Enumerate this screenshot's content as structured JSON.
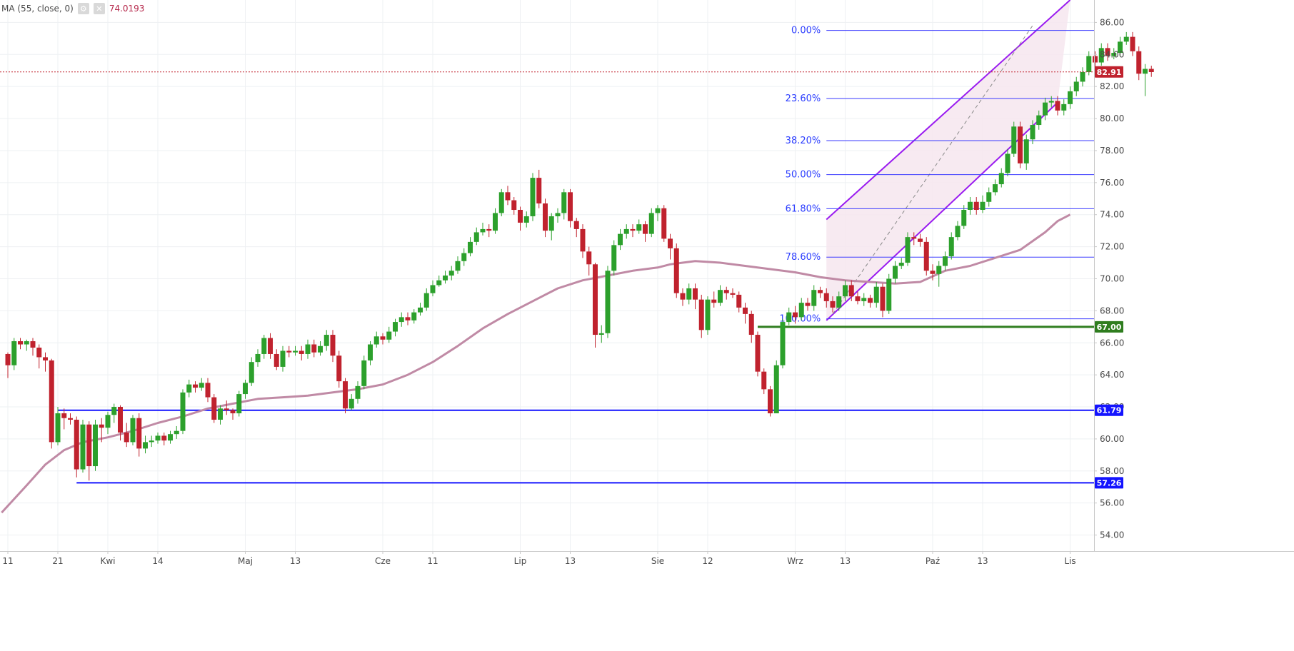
{
  "legend": {
    "study_label": "MA (55, close, 0)",
    "value": "74.0193",
    "settings_icon": "gear-icon",
    "close_icon": "close-icon"
  },
  "colors": {
    "up": "#2ca02c",
    "down": "#c0222e",
    "ma": "#c08aa5",
    "level": "#1414ff",
    "fib": "#3a3aff",
    "channel": "#9a1bf0",
    "channel_fill": "#f6e6ee",
    "support_green": "#2f7d1f",
    "price_tag": "#c0222e"
  },
  "chart_data": {
    "type": "candlestick",
    "x_axis_labels": [
      {
        "label": "11",
        "i": 0
      },
      {
        "label": "21",
        "i": 8
      },
      {
        "label": "Kwi",
        "i": 16
      },
      {
        "label": "14",
        "i": 24
      },
      {
        "label": "Maj",
        "i": 38
      },
      {
        "label": "13",
        "i": 46
      },
      {
        "label": "Cze",
        "i": 60
      },
      {
        "label": "11",
        "i": 68
      },
      {
        "label": "Lip",
        "i": 82
      },
      {
        "label": "13",
        "i": 90
      },
      {
        "label": "Sie",
        "i": 104
      },
      {
        "label": "12",
        "i": 112
      },
      {
        "label": "Wrz",
        "i": 126
      },
      {
        "label": "13",
        "i": 134
      },
      {
        "label": "Paź",
        "i": 148
      },
      {
        "label": "13",
        "i": 156
      },
      {
        "label": "Lis",
        "i": 170
      }
    ],
    "y_ticks": [
      "54.00",
      "56.00",
      "58.00",
      "60.00",
      "62.00",
      "64.00",
      "66.00",
      "68.00",
      "70.00",
      "72.00",
      "74.00",
      "76.00",
      "78.00",
      "80.00",
      "82.00",
      "84.00",
      "86.00"
    ],
    "ylim": [
      53.0,
      87.4
    ],
    "last_price": "82.91",
    "horizontal_levels": [
      {
        "price": 61.79,
        "label": "61.79",
        "from_i": 8
      },
      {
        "price": 57.26,
        "label": "57.26",
        "from_i": 11
      },
      {
        "price": 67.0,
        "label": "67.00",
        "from_i": 120
      }
    ],
    "fibonacci": {
      "from_i": 131,
      "levels": [
        {
          "pct": "0.00%",
          "price": 85.5
        },
        {
          "pct": "23.60%",
          "price": 81.25
        },
        {
          "pct": "38.20%",
          "price": 78.62
        },
        {
          "pct": "50.00%",
          "price": 76.5
        },
        {
          "pct": "61.80%",
          "price": 74.37
        },
        {
          "pct": "78.60%",
          "price": 71.35
        },
        {
          "pct": "100.00%",
          "price": 67.5
        }
      ]
    },
    "channel": {
      "upper": [
        {
          "i": 131,
          "p": 73.7
        },
        {
          "i": 170,
          "p": 87.4
        }
      ],
      "lower": [
        {
          "i": 131,
          "p": 67.4
        },
        {
          "i": 168,
          "p": 81.0
        }
      ],
      "mid": [
        {
          "i": 132,
          "p": 67.8
        },
        {
          "i": 164,
          "p": 85.8
        }
      ]
    },
    "ma_series": [
      [
        -1,
        55.4
      ],
      [
        3,
        57.1
      ],
      [
        6,
        58.4
      ],
      [
        9,
        59.3
      ],
      [
        12,
        59.8
      ],
      [
        16,
        60.1
      ],
      [
        20,
        60.5
      ],
      [
        24,
        61.0
      ],
      [
        28,
        61.4
      ],
      [
        32,
        61.9
      ],
      [
        36,
        62.2
      ],
      [
        40,
        62.5
      ],
      [
        44,
        62.6
      ],
      [
        48,
        62.7
      ],
      [
        52,
        62.9
      ],
      [
        56,
        63.1
      ],
      [
        60,
        63.4
      ],
      [
        64,
        64.0
      ],
      [
        68,
        64.8
      ],
      [
        72,
        65.8
      ],
      [
        76,
        66.9
      ],
      [
        80,
        67.8
      ],
      [
        84,
        68.6
      ],
      [
        88,
        69.4
      ],
      [
        92,
        69.9
      ],
      [
        96,
        70.2
      ],
      [
        100,
        70.5
      ],
      [
        104,
        70.7
      ],
      [
        106,
        70.9
      ],
      [
        108,
        71.0
      ],
      [
        110,
        71.1
      ],
      [
        114,
        71.0
      ],
      [
        118,
        70.8
      ],
      [
        122,
        70.6
      ],
      [
        126,
        70.4
      ],
      [
        130,
        70.1
      ],
      [
        134,
        69.9
      ],
      [
        138,
        69.8
      ],
      [
        142,
        69.7
      ],
      [
        146,
        69.8
      ],
      [
        150,
        70.5
      ],
      [
        154,
        70.8
      ],
      [
        158,
        71.3
      ],
      [
        162,
        71.8
      ],
      [
        166,
        72.9
      ],
      [
        168,
        73.6
      ],
      [
        170,
        74.0
      ]
    ],
    "candles": [
      [
        65.3,
        64.6,
        65.4,
        63.8
      ],
      [
        64.6,
        66.1,
        66.3,
        64.3
      ],
      [
        66.1,
        65.9,
        66.3,
        65.6
      ],
      [
        65.9,
        66.1,
        66.2,
        65.5
      ],
      [
        66.1,
        65.7,
        66.3,
        65.2
      ],
      [
        65.7,
        65.1,
        65.9,
        64.4
      ],
      [
        65.1,
        64.9,
        65.4,
        64.2
      ],
      [
        64.9,
        59.8,
        65.0,
        59.4
      ],
      [
        59.8,
        61.6,
        62.0,
        59.6
      ],
      [
        61.6,
        61.3,
        61.9,
        60.6
      ],
      [
        61.3,
        61.2,
        61.6,
        60.9
      ],
      [
        61.2,
        58.1,
        61.4,
        57.6
      ],
      [
        58.1,
        60.9,
        61.2,
        57.9
      ],
      [
        60.9,
        58.3,
        61.1,
        57.4
      ],
      [
        58.3,
        60.9,
        61.2,
        58.0
      ],
      [
        60.9,
        60.7,
        61.3,
        59.8
      ],
      [
        60.7,
        61.5,
        61.7,
        60.3
      ],
      [
        61.5,
        62.0,
        62.2,
        61.0
      ],
      [
        62.0,
        60.4,
        62.1,
        59.9
      ],
      [
        60.4,
        59.8,
        61.0,
        59.5
      ],
      [
        59.8,
        61.3,
        61.5,
        59.6
      ],
      [
        61.3,
        59.4,
        61.6,
        58.9
      ],
      [
        59.4,
        59.8,
        60.2,
        59.1
      ],
      [
        59.8,
        59.9,
        60.2,
        59.5
      ],
      [
        59.9,
        60.2,
        60.4,
        59.7
      ],
      [
        60.2,
        59.9,
        60.4,
        59.6
      ],
      [
        59.9,
        60.3,
        60.5,
        59.7
      ],
      [
        60.3,
        60.5,
        60.8,
        60.0
      ],
      [
        60.5,
        62.9,
        63.1,
        60.3
      ],
      [
        62.9,
        63.4,
        63.7,
        62.6
      ],
      [
        63.4,
        63.2,
        63.6,
        62.9
      ],
      [
        63.2,
        63.5,
        63.8,
        63.0
      ],
      [
        63.5,
        62.6,
        63.8,
        62.3
      ],
      [
        62.6,
        61.2,
        62.8,
        61.0
      ],
      [
        61.2,
        61.9,
        62.1,
        60.9
      ],
      [
        61.9,
        61.8,
        62.4,
        61.5
      ],
      [
        61.8,
        61.6,
        61.9,
        61.2
      ],
      [
        61.6,
        62.8,
        63.0,
        61.4
      ],
      [
        62.8,
        63.5,
        63.7,
        62.5
      ],
      [
        63.5,
        64.8,
        65.1,
        63.3
      ],
      [
        64.8,
        65.3,
        65.6,
        64.5
      ],
      [
        65.3,
        66.3,
        66.5,
        65.0
      ],
      [
        66.3,
        65.3,
        66.6,
        65.0
      ],
      [
        65.3,
        64.5,
        65.6,
        64.3
      ],
      [
        64.5,
        65.5,
        65.8,
        64.2
      ],
      [
        65.5,
        65.4,
        65.8,
        65.1
      ],
      [
        65.4,
        65.5,
        65.8,
        65.2
      ],
      [
        65.5,
        65.3,
        65.8,
        64.9
      ],
      [
        65.3,
        65.9,
        66.2,
        65.0
      ],
      [
        65.9,
        65.4,
        66.2,
        65.1
      ],
      [
        65.4,
        65.8,
        66.1,
        65.2
      ],
      [
        65.8,
        66.5,
        66.8,
        65.5
      ],
      [
        66.5,
        65.2,
        66.8,
        64.8
      ],
      [
        65.2,
        63.6,
        65.5,
        63.2
      ],
      [
        63.6,
        61.9,
        63.8,
        61.6
      ],
      [
        61.9,
        62.5,
        62.8,
        61.8
      ],
      [
        62.5,
        63.3,
        63.6,
        62.2
      ],
      [
        63.3,
        64.9,
        65.2,
        63.1
      ],
      [
        64.9,
        65.9,
        66.1,
        64.6
      ],
      [
        65.9,
        66.4,
        66.7,
        65.7
      ],
      [
        66.4,
        66.2,
        66.6,
        65.9
      ],
      [
        66.2,
        66.7,
        67.0,
        66.0
      ],
      [
        66.7,
        67.3,
        67.5,
        66.4
      ],
      [
        67.3,
        67.6,
        67.9,
        67.0
      ],
      [
        67.6,
        67.4,
        67.9,
        67.1
      ],
      [
        67.4,
        67.9,
        68.1,
        67.2
      ],
      [
        67.9,
        68.2,
        68.5,
        67.7
      ],
      [
        68.2,
        69.1,
        69.4,
        68.0
      ],
      [
        69.1,
        69.6,
        69.9,
        68.9
      ],
      [
        69.6,
        69.9,
        70.2,
        69.5
      ],
      [
        69.9,
        70.2,
        70.5,
        69.7
      ],
      [
        70.2,
        70.5,
        70.8,
        69.9
      ],
      [
        70.5,
        71.1,
        71.4,
        70.3
      ],
      [
        71.1,
        71.6,
        71.9,
        70.8
      ],
      [
        71.6,
        72.3,
        72.6,
        71.4
      ],
      [
        72.3,
        72.9,
        73.2,
        72.1
      ],
      [
        72.9,
        73.1,
        73.5,
        72.7
      ],
      [
        73.1,
        73.0,
        73.4,
        72.6
      ],
      [
        73.0,
        74.1,
        74.4,
        72.8
      ],
      [
        74.1,
        75.4,
        75.6,
        73.9
      ],
      [
        75.4,
        74.9,
        75.8,
        74.6
      ],
      [
        74.9,
        74.3,
        75.1,
        74.0
      ],
      [
        74.3,
        73.5,
        74.5,
        73.0
      ],
      [
        73.5,
        73.9,
        74.2,
        73.2
      ],
      [
        73.9,
        76.3,
        76.6,
        73.6
      ],
      [
        76.3,
        74.7,
        76.8,
        74.4
      ],
      [
        74.7,
        73.0,
        75.0,
        72.6
      ],
      [
        73.0,
        73.9,
        74.1,
        72.4
      ],
      [
        73.9,
        74.1,
        74.4,
        73.5
      ],
      [
        74.1,
        75.4,
        75.6,
        73.7
      ],
      [
        75.4,
        73.6,
        75.6,
        73.2
      ],
      [
        73.6,
        73.1,
        73.8,
        72.6
      ],
      [
        73.1,
        71.7,
        73.4,
        71.3
      ],
      [
        71.7,
        70.9,
        72.0,
        70.2
      ],
      [
        70.9,
        66.5,
        71.0,
        65.7
      ],
      [
        66.5,
        66.6,
        67.1,
        66.0
      ],
      [
        66.6,
        70.5,
        70.8,
        66.3
      ],
      [
        70.5,
        72.1,
        72.4,
        70.2
      ],
      [
        72.1,
        72.8,
        73.1,
        71.8
      ],
      [
        72.8,
        73.1,
        73.4,
        72.5
      ],
      [
        73.1,
        73.0,
        73.4,
        72.6
      ],
      [
        73.0,
        73.4,
        73.7,
        72.8
      ],
      [
        73.4,
        72.8,
        73.6,
        72.3
      ],
      [
        72.8,
        74.1,
        74.4,
        72.6
      ],
      [
        74.1,
        74.4,
        74.6,
        73.6
      ],
      [
        74.4,
        72.5,
        74.6,
        72.3
      ],
      [
        72.5,
        71.9,
        72.8,
        71.2
      ],
      [
        71.9,
        69.1,
        72.2,
        68.8
      ],
      [
        69.1,
        68.7,
        69.4,
        68.3
      ],
      [
        68.7,
        69.4,
        69.7,
        68.4
      ],
      [
        69.4,
        68.7,
        69.7,
        68.1
      ],
      [
        68.7,
        66.8,
        69.0,
        66.3
      ],
      [
        66.8,
        68.7,
        68.9,
        66.5
      ],
      [
        68.7,
        68.5,
        69.2,
        68.2
      ],
      [
        68.5,
        69.3,
        69.6,
        68.3
      ],
      [
        69.3,
        69.1,
        69.5,
        68.7
      ],
      [
        69.1,
        69.0,
        69.4,
        68.8
      ],
      [
        69.0,
        68.2,
        69.2,
        67.9
      ],
      [
        68.2,
        67.8,
        68.5,
        67.2
      ],
      [
        67.8,
        66.5,
        68.0,
        66.0
      ],
      [
        66.5,
        64.2,
        66.7,
        63.9
      ],
      [
        64.2,
        63.1,
        64.4,
        62.8
      ],
      [
        63.1,
        61.6,
        63.3,
        61.4
      ],
      [
        61.6,
        64.6,
        64.9,
        61.8
      ],
      [
        64.6,
        67.3,
        67.5,
        64.4
      ],
      [
        67.3,
        67.9,
        68.2,
        67.1
      ],
      [
        67.9,
        67.6,
        68.3,
        67.2
      ],
      [
        67.6,
        68.5,
        68.8,
        67.4
      ],
      [
        68.5,
        68.3,
        68.8,
        68.0
      ],
      [
        68.3,
        69.3,
        69.6,
        68.0
      ],
      [
        69.3,
        69.1,
        69.5,
        68.8
      ],
      [
        69.1,
        68.6,
        69.4,
        68.2
      ],
      [
        68.6,
        68.2,
        68.9,
        67.9
      ],
      [
        68.2,
        68.9,
        69.2,
        68.0
      ],
      [
        68.9,
        69.6,
        69.9,
        68.6
      ],
      [
        69.6,
        68.9,
        69.9,
        68.6
      ],
      [
        68.9,
        68.6,
        69.2,
        68.4
      ],
      [
        68.6,
        68.8,
        69.1,
        68.3
      ],
      [
        68.8,
        68.5,
        69.0,
        68.2
      ],
      [
        68.5,
        69.5,
        69.8,
        68.2
      ],
      [
        69.5,
        68.0,
        69.7,
        67.6
      ],
      [
        68.0,
        70.0,
        70.3,
        67.8
      ],
      [
        70.0,
        70.8,
        71.1,
        69.7
      ],
      [
        70.8,
        71.0,
        71.3,
        70.6
      ],
      [
        71.0,
        72.6,
        72.9,
        70.8
      ],
      [
        72.6,
        72.5,
        72.9,
        72.1
      ],
      [
        72.5,
        72.3,
        72.8,
        72.0
      ],
      [
        72.3,
        70.5,
        72.6,
        70.2
      ],
      [
        70.5,
        70.3,
        70.9,
        69.9
      ],
      [
        70.3,
        70.8,
        71.1,
        69.5
      ],
      [
        70.8,
        71.4,
        71.7,
        70.5
      ],
      [
        71.4,
        72.6,
        72.9,
        71.2
      ],
      [
        72.6,
        73.3,
        73.6,
        72.4
      ],
      [
        73.3,
        74.3,
        74.6,
        73.1
      ],
      [
        74.3,
        74.8,
        75.1,
        74.0
      ],
      [
        74.8,
        74.3,
        75.1,
        74.0
      ],
      [
        74.3,
        74.8,
        75.2,
        74.1
      ],
      [
        74.8,
        75.4,
        75.7,
        74.5
      ],
      [
        75.4,
        75.9,
        76.2,
        75.2
      ],
      [
        75.9,
        76.6,
        76.9,
        75.7
      ],
      [
        76.6,
        77.8,
        78.1,
        76.4
      ],
      [
        77.8,
        79.5,
        79.8,
        77.6
      ],
      [
        79.5,
        77.2,
        79.8,
        76.9
      ],
      [
        77.2,
        78.7,
        79.0,
        76.8
      ],
      [
        78.7,
        79.6,
        79.9,
        78.4
      ],
      [
        79.6,
        80.2,
        80.5,
        79.3
      ],
      [
        80.2,
        81.0,
        81.3,
        79.9
      ],
      [
        81.0,
        81.1,
        81.4,
        80.7
      ],
      [
        81.1,
        80.5,
        81.4,
        80.2
      ],
      [
        80.5,
        80.9,
        81.2,
        80.2
      ],
      [
        80.9,
        81.7,
        82.0,
        80.6
      ],
      [
        81.7,
        82.3,
        82.6,
        81.4
      ],
      [
        82.3,
        82.9,
        83.2,
        82.0
      ],
      [
        82.9,
        83.9,
        84.2,
        82.7
      ],
      [
        83.9,
        83.5,
        84.2,
        83.2
      ],
      [
        83.5,
        84.4,
        84.7,
        83.3
      ],
      [
        84.4,
        83.9,
        84.7,
        83.6
      ],
      [
        83.9,
        84.1,
        84.4,
        83.7
      ],
      [
        84.1,
        84.8,
        85.1,
        83.9
      ],
      [
        84.8,
        85.1,
        85.4,
        84.6
      ],
      [
        85.1,
        84.2,
        85.4,
        83.9
      ],
      [
        84.2,
        82.8,
        84.5,
        82.4
      ],
      [
        82.8,
        83.1,
        83.4,
        81.4
      ],
      [
        83.1,
        82.9,
        83.3,
        82.6
      ]
    ]
  }
}
